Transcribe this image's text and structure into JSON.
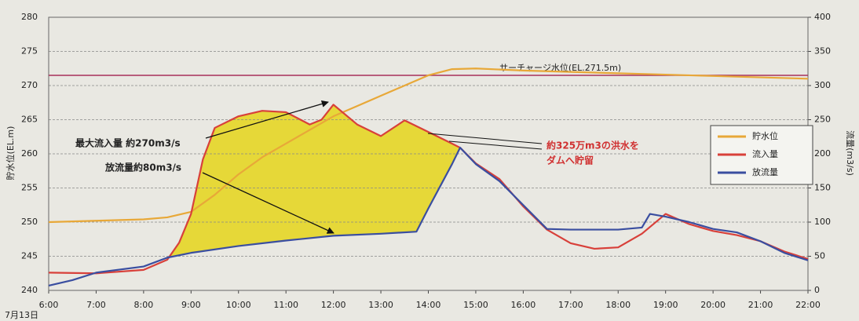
{
  "chart_data": {
    "type": "line",
    "x_sublabel": "7月13日",
    "ylabel": "貯水位(EL.m)",
    "y2label": "流量(m3/s)",
    "xlim": [
      6,
      22
    ],
    "xticks": [
      {
        "value": 6,
        "label": "6:00"
      },
      {
        "value": 7,
        "label": "7:00"
      },
      {
        "value": 8,
        "label": "8:00"
      },
      {
        "value": 9,
        "label": "9:00"
      },
      {
        "value": 10,
        "label": "10:00"
      },
      {
        "value": 11,
        "label": "11:00"
      },
      {
        "value": 12,
        "label": "12:00"
      },
      {
        "value": 13,
        "label": "13:00"
      },
      {
        "value": 14,
        "label": "14:00"
      },
      {
        "value": 15,
        "label": "15:00"
      },
      {
        "value": 16,
        "label": "16:00"
      },
      {
        "value": 17,
        "label": "17:00"
      },
      {
        "value": 18,
        "label": "18:00"
      },
      {
        "value": 19,
        "label": "19:00"
      },
      {
        "value": 20,
        "label": "20:00"
      },
      {
        "value": 21,
        "label": "21:00"
      },
      {
        "value": 22,
        "label": "22:00"
      }
    ],
    "ylim": [
      240,
      280
    ],
    "yticks": [
      240,
      245,
      250,
      255,
      260,
      265,
      270,
      275,
      280
    ],
    "y2lim": [
      0,
      400
    ],
    "y2ticks": [
      0,
      50,
      100,
      150,
      200,
      250,
      300,
      350,
      400
    ],
    "grid": true,
    "legend": "right",
    "series": [
      {
        "name": "貯水位",
        "color": "#e8a838",
        "axis": "y",
        "x": [
          6,
          7,
          8,
          8.5,
          9,
          9.5,
          10,
          10.5,
          11,
          11.5,
          12,
          12.5,
          13,
          13.5,
          14,
          14.5,
          15,
          16,
          17,
          18,
          19,
          20,
          21,
          22
        ],
        "values": [
          250,
          250.2,
          250.4,
          250.7,
          251.5,
          254,
          257,
          259.5,
          261.5,
          263.5,
          265.5,
          267,
          268.5,
          270,
          271.5,
          272.4,
          272.5,
          272.2,
          272,
          271.8,
          271.6,
          271.4,
          271.2,
          271
        ]
      },
      {
        "name": "流入量",
        "color": "#d8403a",
        "axis": "y2",
        "x": [
          6,
          7,
          8,
          8.5,
          8.75,
          9,
          9.25,
          9.5,
          10,
          10.5,
          11,
          11.5,
          11.75,
          12,
          12.5,
          13,
          13.5,
          14,
          14.5,
          14.67,
          15,
          15.5,
          16,
          16.5,
          17,
          17.5,
          18,
          18.5,
          19,
          19.5,
          20,
          20.5,
          21,
          21.5,
          22
        ],
        "values": [
          26,
          25,
          30,
          45,
          70,
          112,
          192,
          238,
          255,
          263,
          261,
          243,
          250,
          272,
          243,
          226,
          249,
          232,
          215,
          209,
          186,
          163,
          123,
          89,
          69,
          61,
          63,
          83,
          112,
          97,
          87,
          81,
          72,
          57,
          46
        ]
      },
      {
        "name": "放流量",
        "color": "#3a4ea0",
        "axis": "y2",
        "x": [
          6,
          6.5,
          7,
          8,
          8.5,
          9,
          10,
          11,
          12,
          13,
          13.75,
          14,
          14.5,
          14.67,
          15,
          15.5,
          16,
          16.5,
          17,
          18,
          18.5,
          18.67,
          19,
          19.5,
          20,
          20.5,
          21,
          21.5,
          22
        ],
        "values": [
          7,
          15,
          26,
          35,
          48,
          55,
          65,
          73,
          80,
          83,
          86,
          120,
          185,
          209,
          185,
          160,
          125,
          90,
          89,
          89,
          92,
          112,
          108,
          100,
          90,
          85,
          72,
          55,
          44
        ]
      }
    ],
    "fill_xlim": [
      8.5,
      14.67
    ],
    "fill_color": "#e6d838",
    "reference_line": {
      "value": 271.5,
      "label": "サーチャージ水位(EL.271.5m)",
      "color": "#a8305a"
    },
    "annotations": [
      "最大流入量 約270m3/s",
      "放流量約80m3/s",
      "約325万m3の洪水を",
      "ダムへ貯留"
    ]
  }
}
